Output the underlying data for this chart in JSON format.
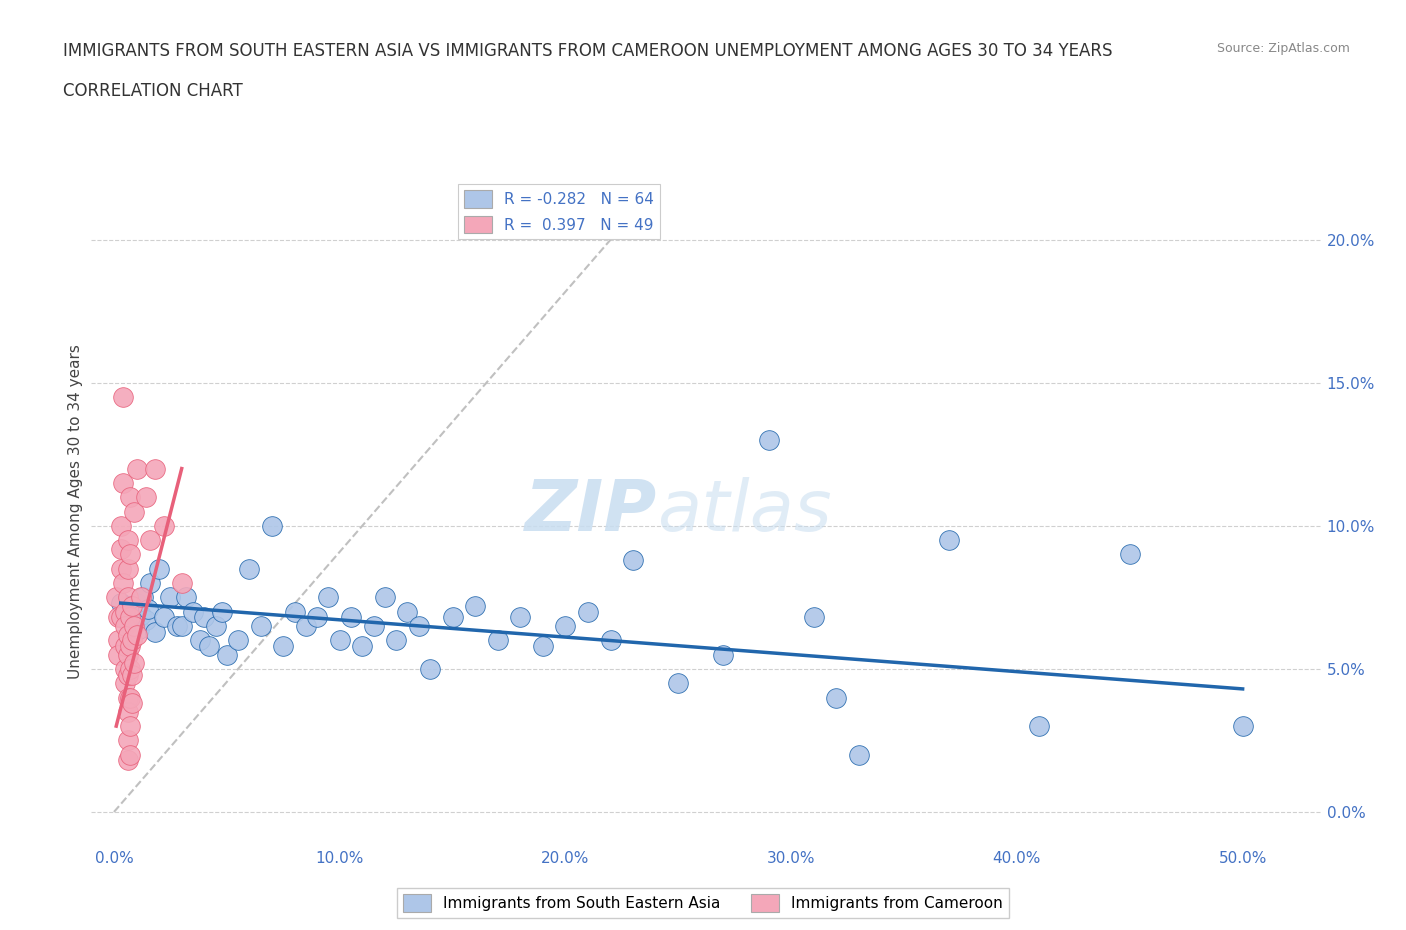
{
  "title_line1": "IMMIGRANTS FROM SOUTH EASTERN ASIA VS IMMIGRANTS FROM CAMEROON UNEMPLOYMENT AMONG AGES 30 TO 34 YEARS",
  "title_line2": "CORRELATION CHART",
  "source": "Source: ZipAtlas.com",
  "xlabel_ticks": [
    "0.0%",
    "10.0%",
    "20.0%",
    "30.0%",
    "40.0%",
    "50.0%"
  ],
  "xlabel_vals": [
    0.0,
    0.1,
    0.2,
    0.3,
    0.4,
    0.5
  ],
  "ylabel_ticks": [
    "0.0%",
    "5.0%",
    "10.0%",
    "15.0%",
    "20.0%"
  ],
  "ylabel_vals": [
    0.0,
    0.05,
    0.1,
    0.15,
    0.2
  ],
  "xlim": [
    -0.01,
    0.535
  ],
  "ylim": [
    -0.012,
    0.222
  ],
  "watermark_zip": "ZIP",
  "watermark_atlas": "atlas",
  "series1_color": "#aec6e8",
  "series2_color": "#f4a7b9",
  "line1_color": "#2166ac",
  "line2_color": "#e8607a",
  "trendline_color": "#c0c0c0",
  "axis_tick_color": "#4472c4",
  "ylabel": "Unemployment Among Ages 30 to 34 years",
  "background_color": "#ffffff",
  "grid_color": "#d0d0d0",
  "blue_dots": [
    [
      0.003,
      0.073
    ],
    [
      0.005,
      0.068
    ],
    [
      0.006,
      0.072
    ],
    [
      0.007,
      0.065
    ],
    [
      0.008,
      0.07
    ],
    [
      0.009,
      0.068
    ],
    [
      0.01,
      0.073
    ],
    [
      0.011,
      0.064
    ],
    [
      0.012,
      0.069
    ],
    [
      0.013,
      0.075
    ],
    [
      0.014,
      0.067
    ],
    [
      0.015,
      0.071
    ],
    [
      0.016,
      0.08
    ],
    [
      0.018,
      0.063
    ],
    [
      0.02,
      0.085
    ],
    [
      0.022,
      0.068
    ],
    [
      0.025,
      0.075
    ],
    [
      0.028,
      0.065
    ],
    [
      0.03,
      0.065
    ],
    [
      0.032,
      0.075
    ],
    [
      0.035,
      0.07
    ],
    [
      0.038,
      0.06
    ],
    [
      0.04,
      0.068
    ],
    [
      0.042,
      0.058
    ],
    [
      0.045,
      0.065
    ],
    [
      0.048,
      0.07
    ],
    [
      0.05,
      0.055
    ],
    [
      0.055,
      0.06
    ],
    [
      0.06,
      0.085
    ],
    [
      0.065,
      0.065
    ],
    [
      0.07,
      0.1
    ],
    [
      0.075,
      0.058
    ],
    [
      0.08,
      0.07
    ],
    [
      0.085,
      0.065
    ],
    [
      0.09,
      0.068
    ],
    [
      0.095,
      0.075
    ],
    [
      0.1,
      0.06
    ],
    [
      0.105,
      0.068
    ],
    [
      0.11,
      0.058
    ],
    [
      0.115,
      0.065
    ],
    [
      0.12,
      0.075
    ],
    [
      0.125,
      0.06
    ],
    [
      0.13,
      0.07
    ],
    [
      0.135,
      0.065
    ],
    [
      0.14,
      0.05
    ],
    [
      0.15,
      0.068
    ],
    [
      0.16,
      0.072
    ],
    [
      0.17,
      0.06
    ],
    [
      0.18,
      0.068
    ],
    [
      0.19,
      0.058
    ],
    [
      0.2,
      0.065
    ],
    [
      0.21,
      0.07
    ],
    [
      0.22,
      0.06
    ],
    [
      0.23,
      0.088
    ],
    [
      0.25,
      0.045
    ],
    [
      0.27,
      0.055
    ],
    [
      0.29,
      0.13
    ],
    [
      0.31,
      0.068
    ],
    [
      0.32,
      0.04
    ],
    [
      0.33,
      0.02
    ],
    [
      0.37,
      0.095
    ],
    [
      0.41,
      0.03
    ],
    [
      0.45,
      0.09
    ],
    [
      0.5,
      0.03
    ]
  ],
  "pink_dots": [
    [
      0.001,
      0.075
    ],
    [
      0.002,
      0.068
    ],
    [
      0.002,
      0.06
    ],
    [
      0.002,
      0.055
    ],
    [
      0.003,
      0.1
    ],
    [
      0.003,
      0.092
    ],
    [
      0.003,
      0.068
    ],
    [
      0.003,
      0.085
    ],
    [
      0.004,
      0.115
    ],
    [
      0.004,
      0.08
    ],
    [
      0.004,
      0.145
    ],
    [
      0.005,
      0.07
    ],
    [
      0.005,
      0.065
    ],
    [
      0.005,
      0.058
    ],
    [
      0.005,
      0.05
    ],
    [
      0.005,
      0.045
    ],
    [
      0.006,
      0.095
    ],
    [
      0.006,
      0.085
    ],
    [
      0.006,
      0.075
    ],
    [
      0.006,
      0.062
    ],
    [
      0.006,
      0.055
    ],
    [
      0.006,
      0.048
    ],
    [
      0.006,
      0.04
    ],
    [
      0.006,
      0.035
    ],
    [
      0.006,
      0.025
    ],
    [
      0.006,
      0.018
    ],
    [
      0.007,
      0.11
    ],
    [
      0.007,
      0.09
    ],
    [
      0.007,
      0.068
    ],
    [
      0.007,
      0.058
    ],
    [
      0.007,
      0.05
    ],
    [
      0.007,
      0.04
    ],
    [
      0.007,
      0.03
    ],
    [
      0.007,
      0.02
    ],
    [
      0.008,
      0.072
    ],
    [
      0.008,
      0.06
    ],
    [
      0.008,
      0.048
    ],
    [
      0.008,
      0.038
    ],
    [
      0.009,
      0.105
    ],
    [
      0.009,
      0.065
    ],
    [
      0.009,
      0.052
    ],
    [
      0.01,
      0.12
    ],
    [
      0.01,
      0.062
    ],
    [
      0.012,
      0.075
    ],
    [
      0.014,
      0.11
    ],
    [
      0.016,
      0.095
    ],
    [
      0.018,
      0.12
    ],
    [
      0.022,
      0.1
    ],
    [
      0.03,
      0.08
    ]
  ],
  "pink_trend_x0": 0.001,
  "pink_trend_x1": 0.03,
  "pink_trend_y0": 0.03,
  "pink_trend_y1": 0.12,
  "blue_trend_x0": 0.003,
  "blue_trend_x1": 0.5,
  "blue_trend_y0": 0.073,
  "blue_trend_y1": 0.043,
  "ref_line_x0": 0.0,
  "ref_line_x1": 0.22,
  "ref_line_y0": 0.0,
  "ref_line_y1": 0.2
}
